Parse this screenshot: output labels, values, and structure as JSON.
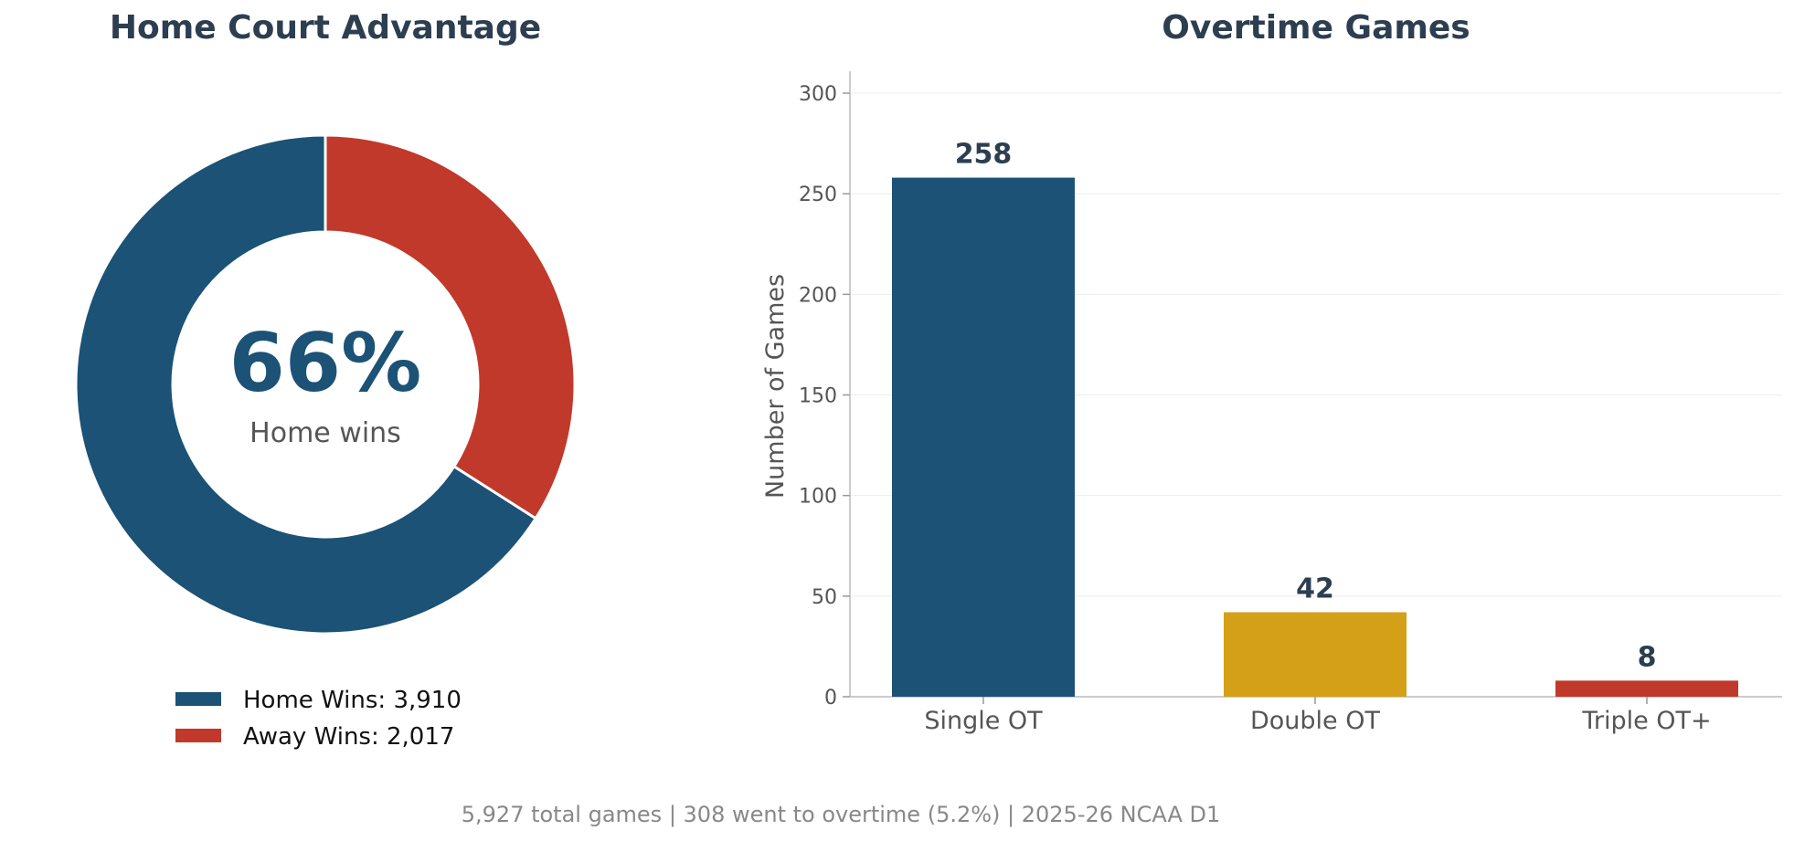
{
  "colors": {
    "home": "#1b5276",
    "away": "#c0392b",
    "single_ot": "#1b5276",
    "double_ot": "#d4a017",
    "triple_ot": "#c0392b",
    "title": "#2c3e50"
  },
  "donut": {
    "title": "Home Court Advantage",
    "center_value": "66%",
    "center_label": "Home wins",
    "legend": [
      {
        "label": "Home Wins:  3,910",
        "color": "#1b5276"
      },
      {
        "label": "Away Wins:  2,017",
        "color": "#c0392b"
      }
    ]
  },
  "bars": {
    "title": "Overtime Games",
    "ylabel": "Number of Games",
    "yticks": [
      "0",
      "50",
      "100",
      "150",
      "200",
      "250",
      "300"
    ],
    "value_labels": [
      "258",
      "42",
      "8"
    ]
  },
  "footer": "5,927 total games  |  308 went to overtime (5.2%)  |  2025-26 NCAA D1",
  "chart_data": [
    {
      "type": "pie",
      "title": "Home Court Advantage",
      "categories": [
        "Home Wins",
        "Away Wins"
      ],
      "values": [
        3910,
        2017
      ],
      "donut": true
    },
    {
      "type": "bar",
      "title": "Overtime Games",
      "categories": [
        "Single OT",
        "Double OT",
        "Triple OT+"
      ],
      "values": [
        258,
        42,
        8
      ],
      "ylabel": "Number of Games",
      "ylim": [
        0,
        310
      ],
      "grid": true
    }
  ]
}
